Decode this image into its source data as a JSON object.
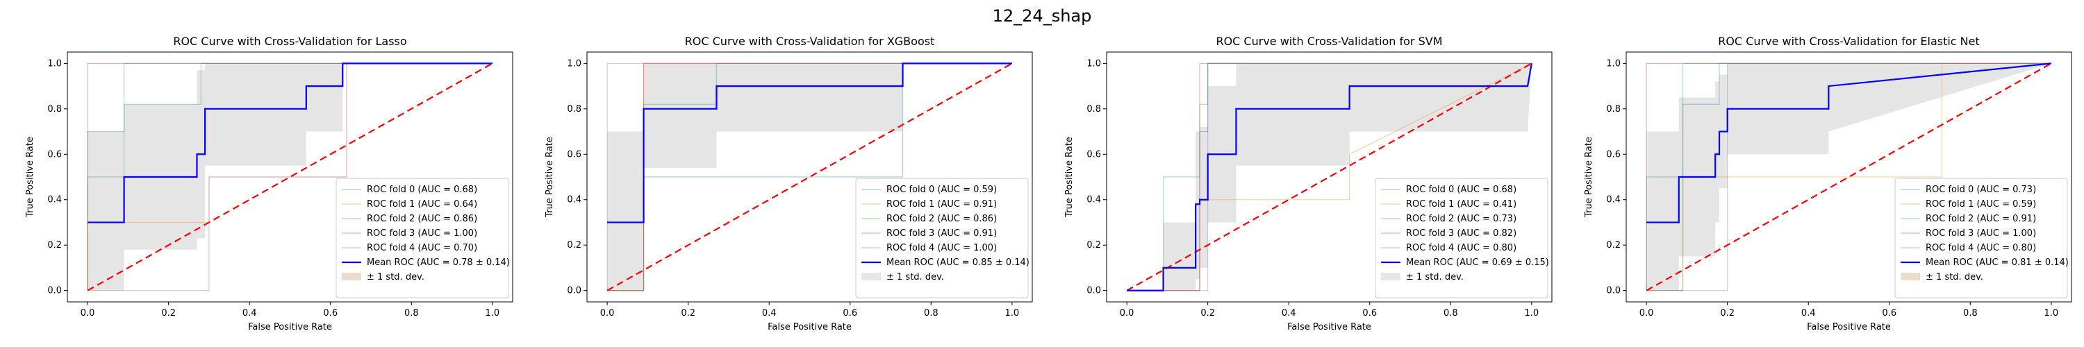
{
  "figure": {
    "suptitle": "12_24_shap"
  },
  "chart_data": [
    {
      "type": "line",
      "title": "ROC Curve with Cross-Validation for Lasso",
      "xlabel": "False Positive Rate",
      "ylabel": "True Positive Rate",
      "xlim": [
        -0.05,
        1.05
      ],
      "ylim": [
        -0.05,
        1.05
      ],
      "xticks": [
        "0.0",
        "0.2",
        "0.4",
        "0.6",
        "0.8",
        "1.0"
      ],
      "yticks": [
        "0.0",
        "0.2",
        "0.4",
        "0.6",
        "0.8",
        "1.0"
      ],
      "legend_position": "lower-right",
      "series": [
        {
          "name": "ROC fold 0 (AUC = 0.68)",
          "color": "#1f77b4",
          "x": [
            0,
            0,
            0.09,
            0.09,
            1
          ],
          "y": [
            0,
            0.7,
            0.7,
            1,
            1
          ]
        },
        {
          "name": "ROC fold 1 (AUC = 0.64)",
          "color": "#ff7f0e",
          "x": [
            0,
            0,
            0.3,
            0.3,
            0.64,
            0.64,
            1
          ],
          "y": [
            0,
            0.3,
            0.3,
            0.5,
            0.5,
            1,
            1
          ]
        },
        {
          "name": "ROC fold 2 (AUC = 0.86)",
          "color": "#2ca02c",
          "x": [
            0,
            0,
            0.09,
            0.09,
            0.28,
            0.28,
            1
          ],
          "y": [
            0,
            0.5,
            0.5,
            0.82,
            0.82,
            1,
            1
          ]
        },
        {
          "name": "ROC fold 3 (AUC = 1.00)",
          "color": "#d62728",
          "x": [
            0,
            0,
            1
          ],
          "y": [
            0,
            1,
            1
          ]
        },
        {
          "name": "ROC fold 4 (AUC = 0.70)",
          "color": "#9467bd",
          "x": [
            0,
            0.3,
            0.3,
            0.64,
            0.64,
            1
          ],
          "y": [
            0,
            0,
            0.5,
            0.5,
            1,
            1
          ]
        }
      ],
      "mean": {
        "name": "Mean ROC (AUC = 0.78 ± 0.14)",
        "color": "#0000ff",
        "x": [
          0,
          0.09,
          0.09,
          0.27,
          0.27,
          0.29,
          0.29,
          0.54,
          0.54,
          0.63,
          0.63,
          1
        ],
        "y": [
          0.3,
          0.3,
          0.5,
          0.5,
          0.6,
          0.6,
          0.8,
          0.8,
          0.9,
          0.9,
          1,
          1
        ]
      },
      "band": {
        "name": "± 1 std. dev.",
        "color": "#d2b48c",
        "x": [
          0,
          0.09,
          0.09,
          0.27,
          0.27,
          0.29,
          0.29,
          0.54,
          0.54,
          0.63,
          0.63,
          1
        ],
        "lower": [
          0,
          0,
          0.18,
          0.18,
          0.23,
          0.23,
          0.55,
          0.55,
          0.7,
          0.7,
          1,
          1
        ],
        "upper": [
          0.7,
          0.7,
          0.82,
          0.82,
          0.97,
          0.97,
          1,
          1,
          1,
          1,
          1,
          1
        ]
      },
      "chance": {
        "color": "#ff0000",
        "x": [
          0,
          1
        ],
        "y": [
          0,
          1
        ]
      }
    },
    {
      "type": "line",
      "title": "ROC Curve with Cross-Validation for XGBoost",
      "xlabel": "False Positive Rate",
      "ylabel": "True Positive Rate",
      "xlim": [
        -0.05,
        1.05
      ],
      "ylim": [
        -0.05,
        1.05
      ],
      "xticks": [
        "0.0",
        "0.2",
        "0.4",
        "0.6",
        "0.8",
        "1.0"
      ],
      "yticks": [
        "0.0",
        "0.2",
        "0.4",
        "0.6",
        "0.8",
        "1.0"
      ],
      "legend_position": "lower-right",
      "series": [
        {
          "name": "ROC fold 0 (AUC = 0.59)",
          "color": "#1f77b4",
          "x": [
            0,
            0.09,
            0.09,
            0.73,
            0.73,
            1
          ],
          "y": [
            0,
            0,
            0.5,
            0.5,
            1,
            1
          ]
        },
        {
          "name": "ROC fold 1 (AUC = 0.91)",
          "color": "#ff7f0e",
          "x": [
            0,
            0.09,
            0.09,
            1
          ],
          "y": [
            0,
            0,
            1,
            1
          ]
        },
        {
          "name": "ROC fold 2 (AUC = 0.86)",
          "color": "#2ca02c",
          "x": [
            0,
            0.09,
            0.09,
            0.27,
            0.27,
            1
          ],
          "y": [
            0,
            0,
            0.82,
            0.82,
            1,
            1
          ]
        },
        {
          "name": "ROC fold 3 (AUC = 0.91)",
          "color": "#d62728",
          "x": [
            0,
            0.09,
            0.09,
            1
          ],
          "y": [
            0,
            0,
            1,
            1
          ]
        },
        {
          "name": "ROC fold 4 (AUC = 1.00)",
          "color": "#9467bd",
          "x": [
            0,
            0,
            1
          ],
          "y": [
            0,
            1,
            1
          ]
        }
      ],
      "mean": {
        "name": "Mean ROC (AUC = 0.85 ± 0.14)",
        "color": "#0000ff",
        "x": [
          0,
          0.09,
          0.09,
          0.27,
          0.27,
          0.73,
          0.73,
          1
        ],
        "y": [
          0.3,
          0.3,
          0.8,
          0.8,
          0.9,
          0.9,
          1,
          1
        ]
      },
      "band": {
        "name": "± 1 std. dev.",
        "color": "#c8c8c8",
        "x": [
          0,
          0.09,
          0.09,
          0.27,
          0.27,
          0.73,
          0.73,
          1
        ],
        "lower": [
          0,
          0,
          0.54,
          0.54,
          0.7,
          0.7,
          1,
          1
        ],
        "upper": [
          0.7,
          0.7,
          1,
          1,
          1,
          1,
          1,
          1
        ]
      },
      "chance": {
        "color": "#ff0000",
        "x": [
          0,
          1
        ],
        "y": [
          0,
          1
        ]
      }
    },
    {
      "type": "line",
      "title": "ROC Curve with Cross-Validation for SVM",
      "xlabel": "False Positive Rate",
      "ylabel": "True Positive Rate",
      "xlim": [
        -0.05,
        1.05
      ],
      "ylim": [
        -0.05,
        1.05
      ],
      "xticks": [
        "0.0",
        "0.2",
        "0.4",
        "0.6",
        "0.8",
        "1.0"
      ],
      "yticks": [
        "0.0",
        "0.2",
        "0.4",
        "0.6",
        "0.8",
        "1.0"
      ],
      "legend_position": "lower-right",
      "series": [
        {
          "name": "ROC fold 0 (AUC = 0.68)",
          "color": "#1f77b4",
          "x": [
            0,
            0.18,
            0.18,
            0.2,
            0.2,
            1
          ],
          "y": [
            0,
            0,
            0.7,
            0.7,
            1,
            1
          ]
        },
        {
          "name": "ROC fold 1 (AUC = 0.41)",
          "color": "#ff7f0e",
          "x": [
            0,
            0.18,
            0.18,
            0.55,
            0.55,
            1
          ],
          "y": [
            0,
            0,
            0.4,
            0.4,
            0.6,
            1
          ]
        },
        {
          "name": "ROC fold 2 (AUC = 0.73)",
          "color": "#2ca02c",
          "x": [
            0,
            0.09,
            0.09,
            0.18,
            0.18,
            0.2,
            0.2,
            1
          ],
          "y": [
            0,
            0,
            0.5,
            0.5,
            0.82,
            0.82,
            1,
            1
          ]
        },
        {
          "name": "ROC fold 3 (AUC = 0.82)",
          "color": "#d62728",
          "x": [
            0,
            0.18,
            0.18,
            1
          ],
          "y": [
            0,
            0,
            1,
            1
          ]
        },
        {
          "name": "ROC fold 4 (AUC = 0.80)",
          "color": "#9467bd",
          "x": [
            0,
            0.2,
            0.2,
            1
          ],
          "y": [
            0,
            0,
            1,
            1
          ]
        }
      ],
      "mean": {
        "name": "Mean ROC (AUC = 0.69 ± 0.15)",
        "color": "#0000ff",
        "x": [
          0,
          0.09,
          0.09,
          0.17,
          0.17,
          0.18,
          0.18,
          0.2,
          0.2,
          0.27,
          0.27,
          0.55,
          0.55,
          0.99,
          1
        ],
        "y": [
          0,
          0,
          0.1,
          0.1,
          0.38,
          0.38,
          0.4,
          0.4,
          0.6,
          0.6,
          0.8,
          0.8,
          0.9,
          0.9,
          1
        ]
      },
      "band": {
        "name": "± 1 std. dev.",
        "color": "#c8c8c8",
        "x": [
          0,
          0.09,
          0.09,
          0.17,
          0.17,
          0.18,
          0.18,
          0.2,
          0.2,
          0.27,
          0.27,
          0.55,
          0.55,
          0.99,
          1
        ],
        "lower": [
          0,
          0,
          0,
          0,
          0.05,
          0.05,
          0.1,
          0.1,
          0.3,
          0.3,
          0.55,
          0.55,
          0.7,
          0.7,
          1
        ],
        "upper": [
          0,
          0,
          0.3,
          0.3,
          0.7,
          0.7,
          0.72,
          0.72,
          0.9,
          0.9,
          1,
          1,
          1,
          1,
          1
        ]
      },
      "chance": {
        "color": "#ff0000",
        "x": [
          0,
          1
        ],
        "y": [
          0,
          1
        ]
      }
    },
    {
      "type": "line",
      "title": "ROC Curve with Cross-Validation for Elastic Net",
      "xlabel": "False Positive Rate",
      "ylabel": "True Positive Rate",
      "xlim": [
        -0.05,
        1.05
      ],
      "ylim": [
        -0.05,
        1.05
      ],
      "xticks": [
        "0.0",
        "0.2",
        "0.4",
        "0.6",
        "0.8",
        "1.0"
      ],
      "yticks": [
        "0.0",
        "0.2",
        "0.4",
        "0.6",
        "0.8",
        "1.0"
      ],
      "legend_position": "lower-right",
      "series": [
        {
          "name": "ROC fold 0 (AUC = 0.73)",
          "color": "#1f77b4",
          "x": [
            0,
            0,
            0.09,
            0.09,
            0.18,
            0.18,
            1
          ],
          "y": [
            0,
            0.5,
            0.5,
            0.82,
            0.82,
            1,
            1
          ]
        },
        {
          "name": "ROC fold 1 (AUC = 0.59)",
          "color": "#ff7f0e",
          "x": [
            0,
            0.09,
            0.09,
            0.73,
            0.73,
            1
          ],
          "y": [
            0,
            0,
            0.5,
            0.5,
            1,
            1
          ]
        },
        {
          "name": "ROC fold 2 (AUC = 0.91)",
          "color": "#2ca02c",
          "x": [
            0,
            0.09,
            0.09,
            1
          ],
          "y": [
            0,
            0,
            1,
            1
          ]
        },
        {
          "name": "ROC fold 3 (AUC = 1.00)",
          "color": "#d62728",
          "x": [
            0,
            0,
            1
          ],
          "y": [
            0,
            1,
            1
          ]
        },
        {
          "name": "ROC fold 4 (AUC = 0.80)",
          "color": "#9467bd",
          "x": [
            0,
            0.2,
            0.2,
            1
          ],
          "y": [
            0,
            0,
            1,
            1
          ]
        }
      ],
      "mean": {
        "name": "Mean ROC (AUC = 0.81 ± 0.14)",
        "color": "#0000ff",
        "x": [
          0,
          0.08,
          0.08,
          0.17,
          0.17,
          0.18,
          0.18,
          0.2,
          0.2,
          0.45,
          0.45,
          1
        ],
        "y": [
          0.3,
          0.3,
          0.5,
          0.5,
          0.6,
          0.6,
          0.7,
          0.7,
          0.8,
          0.8,
          0.9,
          1
        ]
      },
      "band": {
        "name": "± 1 std. dev.",
        "color": "#d2b48c",
        "x": [
          0,
          0.08,
          0.08,
          0.17,
          0.17,
          0.18,
          0.18,
          0.2,
          0.2,
          0.45,
          0.45,
          1
        ],
        "lower": [
          0,
          0,
          0.15,
          0.15,
          0.3,
          0.3,
          0.45,
          0.45,
          0.6,
          0.6,
          0.7,
          1
        ],
        "upper": [
          0.7,
          0.7,
          0.85,
          0.85,
          0.92,
          0.92,
          0.95,
          0.95,
          1,
          1,
          1,
          1
        ]
      },
      "chance": {
        "color": "#ff0000",
        "x": [
          0,
          1
        ],
        "y": [
          0,
          1
        ]
      }
    }
  ]
}
